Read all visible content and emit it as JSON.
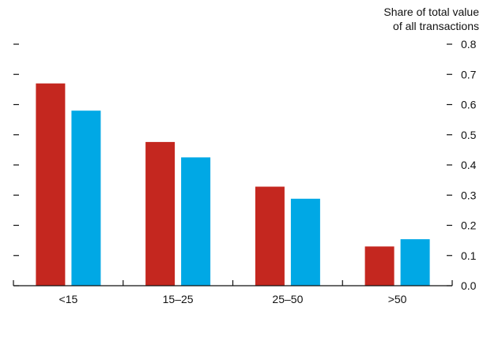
{
  "chart_data": {
    "type": "bar",
    "ylabel_lines": [
      "Share of total value",
      "of all transactions"
    ],
    "categories": [
      "<15",
      "15–25",
      "25–50",
      ">50"
    ],
    "series": [
      {
        "values": [
          0.67,
          0.476,
          0.328,
          0.13
        ],
        "color": "#c4271f"
      },
      {
        "values": [
          0.58,
          0.425,
          0.288,
          0.154
        ],
        "color": "#00a8e5"
      }
    ],
    "ylim": [
      0.0,
      0.8
    ],
    "yticks": [
      "0.0",
      "0.1",
      "0.2",
      "0.3",
      "0.4",
      "0.5",
      "0.6",
      "0.7",
      "0.8"
    ],
    "grid": false,
    "y_axis_side": "right"
  }
}
